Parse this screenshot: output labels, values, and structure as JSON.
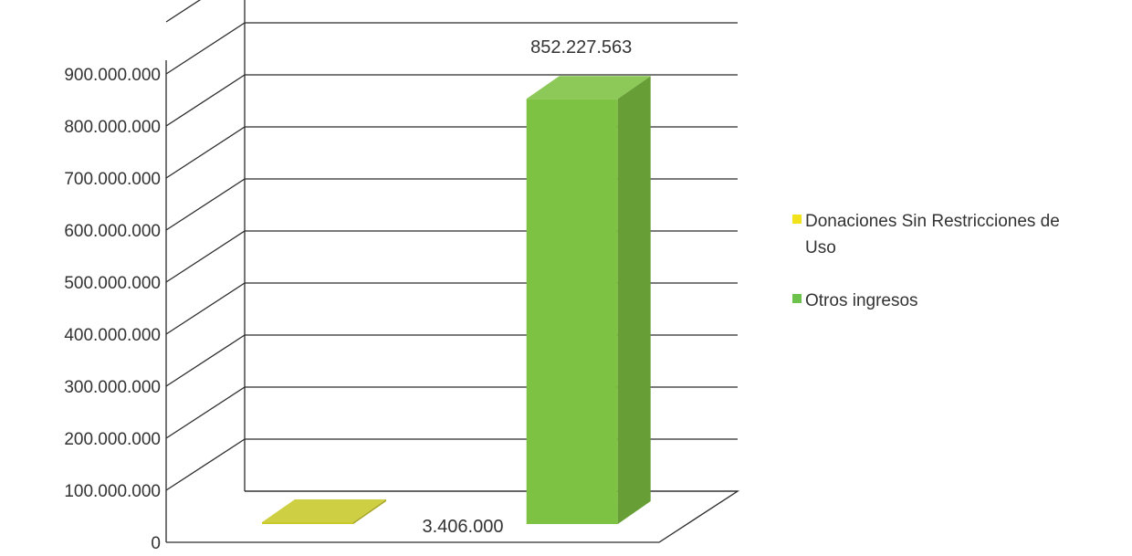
{
  "chart_data": {
    "type": "bar",
    "style": "3d-column",
    "title": "",
    "xlabel": "",
    "ylabel": "",
    "ylim": [
      0,
      900000000
    ],
    "ytick_step": 100000000,
    "y_tick_labels": [
      "0",
      "100.000.000",
      "200.000.000",
      "300.000.000",
      "400.000.000",
      "500.000.000",
      "600.000.000",
      "700.000.000",
      "800.000.000",
      "900.000.000"
    ],
    "grid": true,
    "legend_position": "right",
    "series": [
      {
        "name": "Donaciones Sin Restricciones de Uso",
        "legend_lines": [
          "Donaciones Sin Restricciones de",
          "Uso"
        ],
        "value": 3406000,
        "label": "3.406.000",
        "color": "#c9c92a",
        "legend_color": "#f2e21b"
      },
      {
        "name": "Otros ingresos",
        "legend_lines": [
          "Otros ingresos"
        ],
        "value": 852227563,
        "label": "852.227.563",
        "color": "#7dc242",
        "legend_color": "#6cc24a"
      }
    ]
  }
}
